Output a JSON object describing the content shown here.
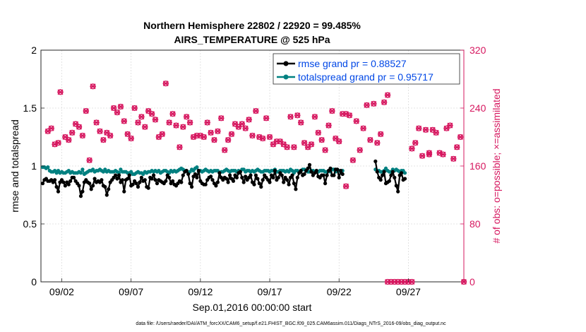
{
  "chart_data": {
    "type": "line",
    "title_line1": "Northern Hemisphere 22802 / 22920 = 99.485%",
    "title_line2": "AIRS_TEMPERATURE @ 525 hPa",
    "xlabel": "Sep.01,2016 00:00:00 start",
    "ylabel_left": "rmse and totalspread",
    "ylabel_right": "# of obs: o=possible; ×=assimilated",
    "footnote": "data file: /Users/raeder/DAI/ATM_forcXX/CAM6_setup/f.e21.FHIST_BGC.f09_025.CAM6assim.011/Diags_NTrS_2016-09/obs_diag_output.nc",
    "xlim": [
      0.5,
      31.0
    ],
    "ylim_left": [
      0,
      2
    ],
    "ylim_right": [
      0,
      320
    ],
    "yticks_left": [
      "0",
      "0.5",
      "1",
      "1.5",
      "2"
    ],
    "yticks_right": [
      "0",
      "80",
      "160",
      "240",
      "320"
    ],
    "xticks": [
      {
        "day": 2,
        "label": "09/02"
      },
      {
        "day": 7,
        "label": "09/07"
      },
      {
        "day": 12,
        "label": "09/12"
      },
      {
        "day": 17,
        "label": "09/17"
      },
      {
        "day": 22,
        "label": "09/22"
      },
      {
        "day": 27,
        "label": "09/27"
      }
    ],
    "colors": {
      "rmse": "#000000",
      "spread": "#008080",
      "obs": "#d6175f",
      "legend_text": "#0047e6"
    },
    "legend": [
      {
        "name": "rmse grand pr = 0.88527",
        "color": "#000000"
      },
      {
        "name": "totalspread grand pr = 0.95717",
        "color": "#008080"
      }
    ],
    "series": [
      {
        "name": "rmse",
        "axis": "left",
        "x_start": 0.625,
        "dx": 0.125,
        "segments": [
          {
            "from": 0,
            "values": [
              0.85,
              0.88,
              0.89,
              0.87,
              0.87,
              0.88,
              0.86,
              0.88,
              0.82,
              0.78,
              0.86,
              0.88,
              0.86,
              0.83,
              0.86,
              0.84,
              0.87,
              0.9,
              0.9,
              0.87,
              0.85,
              0.83,
              0.74,
              0.78,
              0.86,
              0.88,
              0.86,
              0.85,
              0.8,
              0.83,
              0.89,
              0.86,
              0.87,
              0.86,
              0.88,
              0.83,
              0.82,
              0.75,
              0.8,
              0.86,
              0.88,
              0.9,
              0.92,
              0.89,
              0.92,
              0.86,
              0.88,
              0.78,
              0.88,
              0.89,
              0.92,
              0.83,
              0.84,
              0.87,
              0.85,
              0.82,
              0.86,
              0.9,
              0.87,
              0.88,
              0.82,
              0.81,
              0.9,
              0.89,
              0.92,
              0.88,
              0.85,
              0.88,
              0.87,
              0.86,
              0.85,
              0.87,
              0.92,
              0.9,
              0.85,
              0.87,
              0.84,
              0.83,
              0.85,
              0.87,
              0.86,
              0.92,
              0.95,
              0.96,
              0.93,
              0.85,
              0.82,
              0.91,
              0.93,
              0.9,
              0.96,
              0.87,
              0.85,
              0.84,
              0.84,
              0.88,
              0.9,
              0.91,
              0.88,
              0.85,
              0.83,
              0.86,
              0.94,
              0.9,
              0.88,
              0.9,
              0.89,
              0.86,
              0.92,
              0.89,
              0.87,
              0.92,
              0.9,
              0.94,
              0.95,
              0.9,
              0.86,
              0.91,
              0.88,
              0.9,
              0.92,
              0.86,
              0.84,
              0.92,
              0.89,
              0.85,
              0.82,
              0.88,
              0.92,
              0.9,
              0.88,
              0.86,
              0.92,
              0.9,
              0.96,
              0.88,
              0.9,
              0.94,
              0.92,
              0.86,
              0.9,
              0.88,
              0.84,
              0.9,
              0.92,
              0.85,
              0.8,
              0.9,
              0.94,
              0.96,
              0.92,
              0.93,
              0.96,
              0.98,
              1.01,
              0.95,
              0.92,
              0.94,
              0.96,
              0.91,
              0.9,
              0.92,
              0.92,
              0.85,
              0.92,
              0.96,
              0.98,
              0.92,
              0.92,
              0.97,
              0.97,
              0.9,
              0.96,
              0.93
            ]
          },
          {
            "from": 192,
            "values": [
              1.04,
              0.95,
              0.9,
              0.88,
              0.92,
              0.95,
              0.85,
              0.86,
              0.87,
              0.92,
              0.95,
              0.9,
              0.83,
              0.78,
              0.92,
              0.94,
              0.88,
              0.89
            ]
          }
        ]
      },
      {
        "name": "totalspread",
        "axis": "left",
        "x_start": 0.625,
        "dx": 0.125,
        "segments": [
          {
            "from": 0,
            "values": [
              0.99,
              0.99,
              0.98,
              0.99,
              0.96,
              0.95,
              0.95,
              0.96,
              0.94,
              0.96,
              0.94,
              0.95,
              0.94,
              0.94,
              0.95,
              0.96,
              0.94,
              0.95,
              0.94,
              0.94,
              0.94,
              0.95,
              0.94,
              0.97,
              0.93,
              0.94,
              0.95,
              0.96,
              0.96,
              0.97,
              0.95,
              0.96,
              0.96,
              0.97,
              0.96,
              0.95,
              0.97,
              0.95,
              0.96,
              0.95,
              0.95,
              0.95,
              0.96,
              0.95,
              0.94,
              0.97,
              0.95,
              0.95,
              0.95,
              0.94,
              0.94,
              0.95,
              0.93,
              0.93,
              0.94,
              0.95,
              0.94,
              0.94,
              0.93,
              0.95,
              0.94,
              0.95,
              0.95,
              0.96,
              0.95,
              0.96,
              0.95,
              0.96,
              0.94,
              0.95,
              0.96,
              0.96,
              0.95,
              0.94,
              0.96,
              0.95,
              0.96,
              0.95,
              0.96,
              0.97,
              0.98,
              0.97,
              0.96,
              0.96,
              0.94,
              0.95,
              0.97,
              0.96,
              0.98,
              0.99,
              0.95,
              0.96,
              0.95,
              0.96,
              0.97,
              0.96,
              0.95,
              0.96,
              0.95,
              0.96,
              0.96,
              0.96,
              0.94,
              0.95,
              0.95,
              0.96,
              0.97,
              0.96,
              0.95,
              0.96,
              0.96,
              0.96,
              0.95,
              0.96,
              0.95,
              0.97,
              0.97,
              0.95,
              0.96,
              0.96,
              0.95,
              0.96,
              0.95,
              0.96,
              0.97,
              0.96,
              0.95,
              0.95,
              0.96,
              0.96,
              0.96,
              0.95,
              0.96,
              0.96,
              0.97,
              0.95,
              0.95,
              0.96,
              0.96,
              0.96,
              0.95,
              0.96,
              0.95,
              0.97,
              0.96,
              0.94,
              0.96,
              0.96,
              0.95,
              0.96,
              0.97,
              0.97,
              0.96,
              0.95,
              0.95,
              0.96,
              0.96,
              0.95,
              0.96,
              0.95,
              0.96,
              0.96,
              0.96,
              0.95,
              0.95,
              0.96,
              0.95,
              0.97,
              0.97,
              0.95,
              0.96,
              0.96,
              0.95,
              0.96
            ]
          },
          {
            "from": 192,
            "values": [
              0.97,
              0.96,
              0.96,
              0.95,
              0.95,
              0.96,
              0.98,
              0.96,
              0.95,
              0.95,
              0.97,
              0.96,
              0.97,
              0.96,
              0.95,
              0.96,
              0.96,
              0.94
            ]
          }
        ]
      }
    ],
    "obs_points": [
      [
        1.0,
        208
      ],
      [
        1.25,
        212
      ],
      [
        1.5,
        190
      ],
      [
        1.75,
        192
      ],
      [
        1.9,
        262
      ],
      [
        2.25,
        200
      ],
      [
        2.5,
        196
      ],
      [
        2.75,
        206
      ],
      [
        3.0,
        218
      ],
      [
        3.25,
        214
      ],
      [
        3.5,
        202
      ],
      [
        3.75,
        236
      ],
      [
        4.0,
        168
      ],
      [
        4.25,
        270
      ],
      [
        4.5,
        220
      ],
      [
        4.75,
        208
      ],
      [
        5.0,
        196
      ],
      [
        5.25,
        206
      ],
      [
        5.5,
        202
      ],
      [
        5.75,
        240
      ],
      [
        6.0,
        234
      ],
      [
        6.25,
        242
      ],
      [
        6.5,
        222
      ],
      [
        6.75,
        204
      ],
      [
        7.0,
        198
      ],
      [
        7.25,
        240
      ],
      [
        7.5,
        220
      ],
      [
        7.75,
        228
      ],
      [
        8.0,
        214
      ],
      [
        8.25,
        236
      ],
      [
        8.5,
        232
      ],
      [
        8.75,
        224
      ],
      [
        9.0,
        200
      ],
      [
        9.25,
        204
      ],
      [
        9.5,
        274
      ],
      [
        9.75,
        220
      ],
      [
        10.0,
        232
      ],
      [
        10.25,
        216
      ],
      [
        10.5,
        186
      ],
      [
        10.75,
        214
      ],
      [
        11.0,
        228
      ],
      [
        11.25,
        220
      ],
      [
        11.5,
        200
      ],
      [
        11.75,
        202
      ],
      [
        12.0,
        202
      ],
      [
        12.25,
        200
      ],
      [
        12.5,
        220
      ],
      [
        12.75,
        206
      ],
      [
        13.0,
        196
      ],
      [
        13.25,
        208
      ],
      [
        13.5,
        226
      ],
      [
        13.75,
        182
      ],
      [
        14.0,
        196
      ],
      [
        14.25,
        204
      ],
      [
        14.5,
        218
      ],
      [
        14.75,
        214
      ],
      [
        15.0,
        218
      ],
      [
        15.25,
        212
      ],
      [
        15.5,
        224
      ],
      [
        15.75,
        202
      ],
      [
        16.0,
        236
      ],
      [
        16.25,
        200
      ],
      [
        16.5,
        198
      ],
      [
        16.75,
        226
      ],
      [
        17.0,
        200
      ],
      [
        17.25,
        190
      ],
      [
        17.5,
        194
      ],
      [
        17.75,
        194
      ],
      [
        18.0,
        190
      ],
      [
        18.25,
        186
      ],
      [
        18.5,
        228
      ],
      [
        18.75,
        186
      ],
      [
        19.0,
        230
      ],
      [
        19.25,
        220
      ],
      [
        19.5,
        192
      ],
      [
        19.75,
        186
      ],
      [
        20.0,
        190
      ],
      [
        20.25,
        228
      ],
      [
        20.5,
        206
      ],
      [
        20.75,
        196
      ],
      [
        21.0,
        182
      ],
      [
        21.25,
        216
      ],
      [
        21.5,
        236
      ],
      [
        21.75,
        198
      ],
      [
        22.0,
        194
      ],
      [
        22.25,
        232
      ],
      [
        22.5,
        232
      ],
      [
        22.75,
        230
      ],
      [
        23.0,
        168
      ],
      [
        23.25,
        222
      ],
      [
        23.5,
        182
      ],
      [
        23.75,
        212
      ],
      [
        24.0,
        244
      ],
      [
        24.25,
        196
      ],
      [
        24.5,
        246
      ],
      [
        24.75,
        192
      ],
      [
        25.0,
        204
      ],
      [
        25.25,
        248
      ],
      [
        25.5,
        258
      ],
      [
        27.25,
        184
      ],
      [
        27.5,
        192
      ],
      [
        27.75,
        212
      ],
      [
        28.0,
        174
      ],
      [
        28.25,
        210
      ],
      [
        28.5,
        176
      ],
      [
        28.75,
        210
      ],
      [
        29.0,
        206
      ],
      [
        29.25,
        178
      ],
      [
        29.5,
        176
      ],
      [
        29.75,
        212
      ],
      [
        30.0,
        216
      ],
      [
        30.25,
        170
      ],
      [
        30.5,
        186
      ],
      [
        30.75,
        200
      ]
    ],
    "obs_red_low": [
      [
        22.5,
        132
      ],
      [
        28.5,
        178
      ]
    ],
    "obs_zero_days": [
      25.5,
      25.75,
      26.0,
      26.25,
      26.5,
      26.75,
      27.0,
      27.25,
      31.0
    ]
  }
}
